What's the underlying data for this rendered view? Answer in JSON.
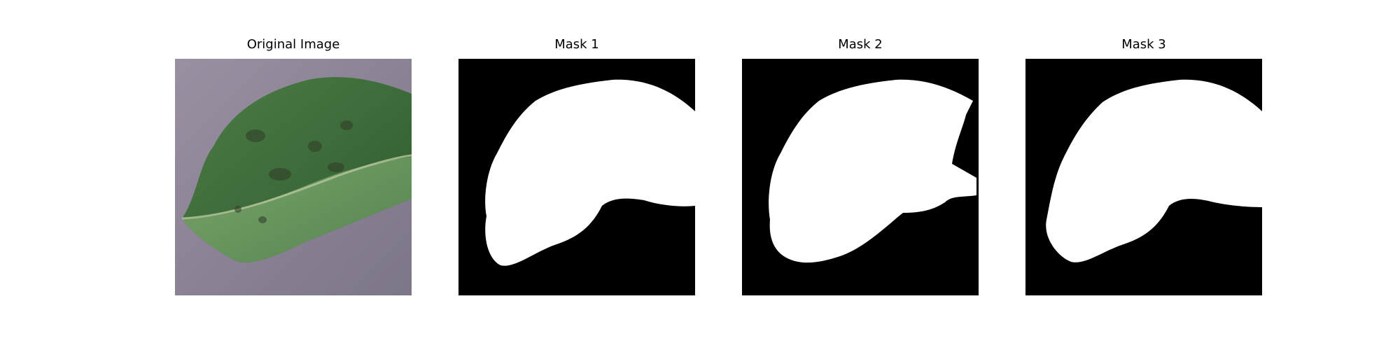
{
  "panels": [
    {
      "title": "Original Image",
      "kind": "photo",
      "subject": "leaf"
    },
    {
      "title": "Mask 1",
      "kind": "mask"
    },
    {
      "title": "Mask 2",
      "kind": "mask"
    },
    {
      "title": "Mask 3",
      "kind": "mask"
    }
  ],
  "colors": {
    "background": "#8f8898",
    "leaf_dark": "#3f6a3a",
    "leaf_light": "#77a46a",
    "mask_fg": "#ffffff",
    "mask_bg": "#000000"
  }
}
